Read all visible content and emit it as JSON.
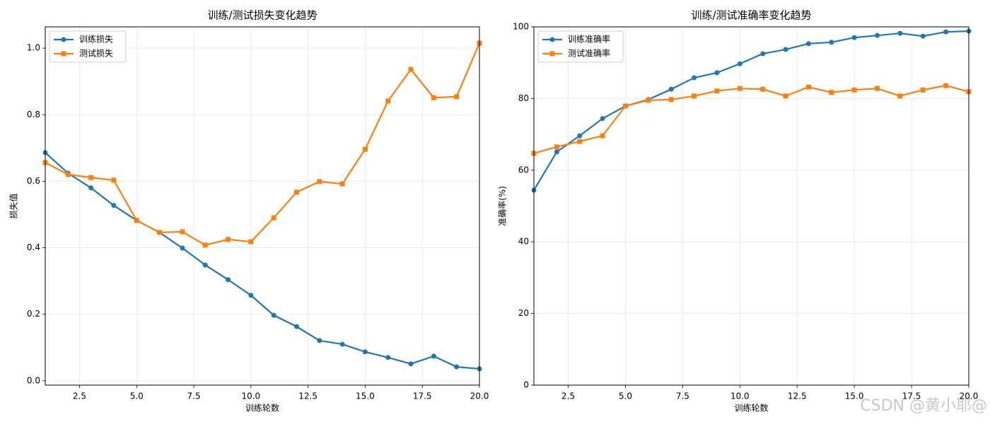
{
  "chart_data": [
    {
      "type": "line",
      "title": "训练/测试损失变化趋势",
      "x_label": "训练轮数",
      "y_label": "损失值",
      "x": [
        1,
        2,
        3,
        4,
        5,
        6,
        7,
        8,
        9,
        10,
        11,
        12,
        13,
        14,
        15,
        16,
        17,
        18,
        19,
        20
      ],
      "series": [
        {
          "name": "训练损失",
          "color": "#1f77b4",
          "marker": "circle",
          "values": [
            0.686,
            0.624,
            0.58,
            0.527,
            0.482,
            0.446,
            0.399,
            0.348,
            0.304,
            0.257,
            0.197,
            0.163,
            0.121,
            0.11,
            0.087,
            0.07,
            0.051,
            0.074,
            0.042,
            0.036
          ]
        },
        {
          "name": "测试损失",
          "color": "#ff7f0e",
          "marker": "square",
          "values": [
            0.656,
            0.62,
            0.611,
            0.603,
            0.482,
            0.446,
            0.448,
            0.408,
            0.425,
            0.418,
            0.49,
            0.567,
            0.599,
            0.592,
            0.696,
            0.841,
            0.936,
            0.851,
            0.854,
            1.015
          ]
        }
      ],
      "xlim": [
        1,
        20
      ],
      "xticks": [
        2.5,
        {
          "value": 5,
          "label": "5.0"
        },
        7.5,
        {
          "value": 10,
          "label": "10.0"
        },
        12.5,
        {
          "value": 15,
          "label": "15.0"
        },
        17.5,
        {
          "value": 20,
          "label": "20.0"
        }
      ],
      "ylim": [
        -0.013,
        1.064
      ],
      "yticks": [
        {
          "value": 0,
          "label": "0.0"
        },
        0.2,
        0.4,
        0.6,
        0.8,
        {
          "value": 1,
          "label": "1.0"
        }
      ],
      "grid": true,
      "legend": "upper left"
    },
    {
      "type": "line",
      "title": "训练/测试准确率变化趋势",
      "x_label": "训练轮数",
      "y_label": "准确率(%)",
      "x": [
        1,
        2,
        3,
        4,
        5,
        6,
        7,
        8,
        9,
        10,
        11,
        12,
        13,
        14,
        15,
        16,
        17,
        18,
        19,
        20
      ],
      "series": [
        {
          "name": "训练准确率",
          "color": "#1f77b4",
          "marker": "circle",
          "values": [
            54.4,
            65.1,
            69.6,
            74.4,
            77.9,
            79.7,
            82.6,
            85.8,
            87.2,
            89.7,
            92.5,
            93.7,
            95.3,
            95.7,
            97.0,
            97.6,
            98.2,
            97.4,
            98.6,
            98.8
          ]
        },
        {
          "name": "测试准确率",
          "color": "#ff7f0e",
          "marker": "square",
          "values": [
            64.7,
            66.5,
            68.0,
            69.6,
            77.9,
            79.5,
            79.7,
            80.7,
            82.1,
            82.8,
            82.6,
            80.7,
            83.2,
            81.7,
            82.4,
            82.8,
            80.7,
            82.4,
            83.6,
            81.9
          ]
        }
      ],
      "xlim": [
        1,
        20
      ],
      "xticks": [
        2.5,
        {
          "value": 5,
          "label": "5.0"
        },
        7.5,
        {
          "value": 10,
          "label": "10.0"
        },
        12.5,
        {
          "value": 15,
          "label": "15.0"
        },
        17.5,
        {
          "value": 20,
          "label": "20.0"
        }
      ],
      "ylim": [
        0,
        100
      ],
      "yticks": [
        0,
        20,
        40,
        60,
        80,
        100
      ],
      "grid": true,
      "legend": "upper left"
    }
  ],
  "watermark": "CSDN @黄小耶@"
}
